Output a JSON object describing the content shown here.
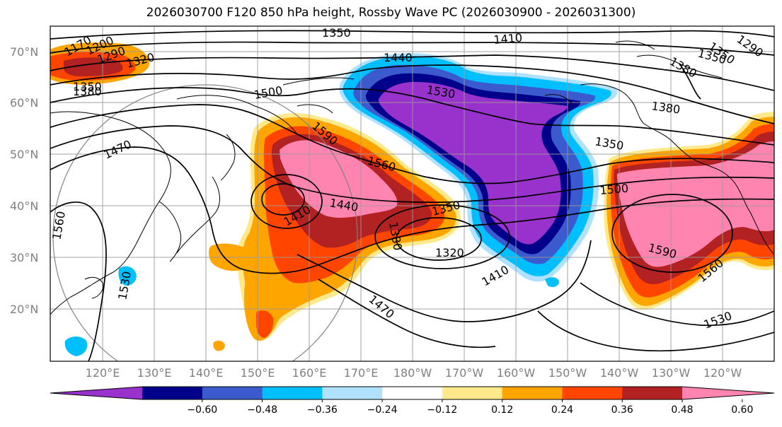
{
  "title": "2026030700 F120 850 hPa height, Rossby Wave PC (2026030900 - 2026031300)",
  "lat_labels": [
    "70°N",
    "60°N",
    "50°N",
    "40°N",
    "30°N",
    "20°N"
  ],
  "lon_labels": [
    "120°E",
    "130°E",
    "140°E",
    "150°E",
    "160°E",
    "170°E",
    "180°W",
    "170°W",
    "160°W",
    "150°W",
    "140°W",
    "130°W",
    "120°W"
  ],
  "contour_labels": [
    "1170",
    "1200",
    "1290",
    "1320",
    "1350",
    "1380",
    "1350",
    "1410",
    "1440",
    "1530",
    "1500",
    "1590",
    "1560",
    "1380",
    "1350",
    "1470",
    "1560",
    "1440",
    "1410",
    "1350",
    "1380",
    "1320",
    "1500",
    "1410",
    "1590",
    "1560",
    "1530",
    "1470",
    "1530",
    "1350",
    "1380",
    "1290",
    "1350"
  ],
  "colorbar": {
    "ticks": [
      "−0.60",
      "−0.48",
      "−0.36",
      "−0.24",
      "−0.12",
      "0.12",
      "0.24",
      "0.36",
      "0.48",
      "0.60"
    ],
    "colors": [
      "#9932cc",
      "#00008b",
      "#3a5acd",
      "#00bfff",
      "#b0e2ff",
      "#ffffff",
      "#ffe98a",
      "#ffa500",
      "#ff4500",
      "#b22222",
      "#ff85b0"
    ]
  },
  "palette": {
    "violet": "#9932cc",
    "navy": "#00008b",
    "blue": "#3a5acd",
    "sky": "#00bfff",
    "pale": "#b0e2ff",
    "yellow": "#ffe98a",
    "orange": "#ffa500",
    "red": "#ff4500",
    "brick": "#b22222",
    "pink": "#ff85b0"
  }
}
